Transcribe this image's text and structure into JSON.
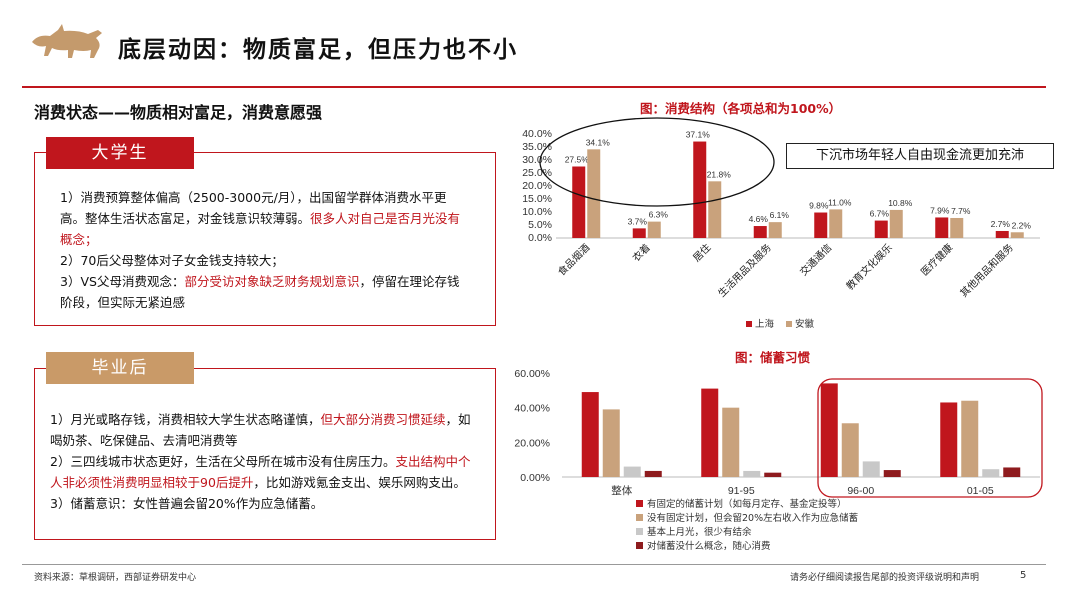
{
  "header": {
    "title": "底层动因：物质富足，但压力也不小"
  },
  "section": {
    "title": "消费状态——物质相对富足，消费意愿强"
  },
  "college": {
    "tab": "大学生",
    "p1a": "1）消费预算整体偏高（2500-3000元/月），出国留学群体消费水平更高。整体生活状态富足，对金钱意识较薄弱。",
    "p1b": "很多人对自己是否月光没有概念；",
    "p2": "2）70后父母整体对子女金钱支持较大；",
    "p3a": "3）VS父母消费观念：",
    "p3b": "部分受访对象缺乏财务规划意识",
    "p3c": "，停留在理论存钱阶段，但实际无紧迫感"
  },
  "graduate": {
    "tab": "毕业后",
    "p1a": "1）月光或略存钱，消费相较大学生状态略谨慎，",
    "p1b": "但大部分消费习惯延续",
    "p1c": "，如喝奶茶、吃保健品、去清吧消费等",
    "p2a": "2）三四线城市状态更好，生活在父母所在城市没有住房压力。",
    "p2b": "支出结构中个人非必须性消费明显相较于90后提升",
    "p2c": "，比如游戏氪金支出、娱乐网购支出。",
    "p3": "3）储蓄意识：女性普遍会留20%作为应急储蓄。"
  },
  "callout": {
    "text": "下沉市场年轻人自由现金流更加充沛"
  },
  "footer": {
    "source": "资料来源：草根调研，西部证券研发中心",
    "disclaimer": "请务必仔细阅读报告尾部的投资评级说明和声明",
    "page": "5"
  },
  "colors": {
    "accent": "#c0161d",
    "tan": "#c9a27c",
    "gray": "#c8c8c8",
    "darkred": "#8e1b1e",
    "tab_tan": "#c99a68"
  },
  "chart_data": [
    {
      "type": "bar",
      "title": "图：消费结构（各项总和为100%）",
      "categories": [
        "食品烟酒",
        "衣着",
        "居住",
        "生活用品及服务",
        "交通通信",
        "教育文化娱乐",
        "医疗健康",
        "其他用品和服务"
      ],
      "series": [
        {
          "name": "上海",
          "values": [
            27.5,
            3.7,
            37.1,
            4.6,
            9.8,
            6.7,
            7.9,
            2.7
          ],
          "labels": [
            "27.5%",
            "3.7%",
            "37.1%",
            "4.6%",
            "9.8%",
            "6.7%",
            "7.9%",
            "2.7%"
          ]
        },
        {
          "name": "安徽",
          "values": [
            34.1,
            6.3,
            21.8,
            6.1,
            11.0,
            10.8,
            7.7,
            2.2
          ],
          "labels": [
            "34.1%",
            "6.3%",
            "21.8%",
            "6.1%",
            "11.0%",
            "10.8%",
            "7.7%",
            "2.2%"
          ]
        }
      ],
      "ylim": [
        0,
        40
      ],
      "yticks": [
        "0.0%",
        "5.0%",
        "10.0%",
        "15.0%",
        "20.0%",
        "25.0%",
        "30.0%",
        "35.0%",
        "40.0%"
      ],
      "xlabel": "",
      "ylabel": ""
    },
    {
      "type": "bar",
      "title": "图：储蓄习惯",
      "categories": [
        "整体",
        "91-95",
        "96-00",
        "01-05"
      ],
      "series": [
        {
          "name": "有固定的储蓄计划（如每月定存、基金定投等）",
          "values": [
            49,
            51,
            54,
            43
          ]
        },
        {
          "name": "没有固定计划，但会留20%左右收入作为应急储蓄",
          "values": [
            39,
            40,
            31,
            44
          ]
        },
        {
          "name": "基本上月光，很少有结余",
          "values": [
            6,
            3.5,
            9,
            4.5
          ]
        },
        {
          "name": "对储蓄没什么概念，随心消费",
          "values": [
            3.5,
            2.5,
            4,
            5.5
          ]
        }
      ],
      "ylim": [
        0,
        60
      ],
      "yticks": [
        "0.00%",
        "20.00%",
        "40.00%",
        "60.00%"
      ],
      "xlabel": "",
      "ylabel": ""
    }
  ]
}
